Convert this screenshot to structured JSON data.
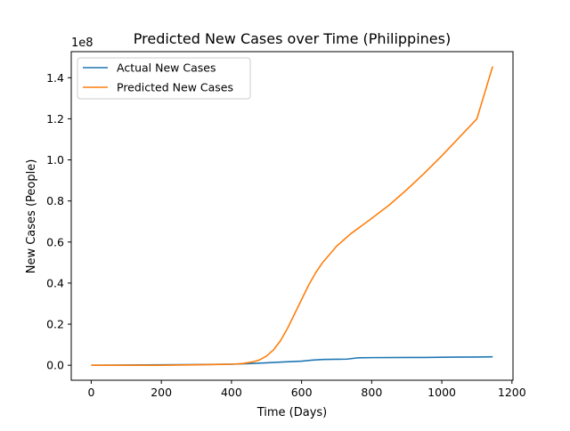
{
  "chart_data": {
    "type": "line",
    "title": "Predicted New Cases over Time (Philippines)",
    "xlabel": "Time (Days)",
    "ylabel": "New Cases (People)",
    "y_offset_label": "1e8",
    "xlim": [
      -57,
      1203
    ],
    "ylim": [
      -0.073,
      1.527
    ],
    "xticks": [
      0,
      200,
      400,
      600,
      800,
      1000,
      1200
    ],
    "xtick_labels": [
      "0",
      "200",
      "400",
      "600",
      "800",
      "1000",
      "1200"
    ],
    "yticks": [
      0.0,
      0.2,
      0.4,
      0.6,
      0.8,
      1.0,
      1.2,
      1.4
    ],
    "ytick_labels": [
      "0.0",
      "0.2",
      "0.4",
      "0.6",
      "0.8",
      "1.0",
      "1.2",
      "1.4"
    ],
    "grid": false,
    "legend_position": "top-left",
    "series": [
      {
        "name": "Actual New Cases",
        "color": "#1f77b4",
        "x": [
          0,
          100,
          200,
          300,
          400,
          450,
          500,
          550,
          600,
          630,
          660,
          700,
          730,
          760,
          800,
          900,
          950,
          1000,
          1100,
          1145
        ],
        "y": [
          0.0,
          0.001,
          0.002,
          0.003,
          0.005,
          0.008,
          0.012,
          0.016,
          0.02,
          0.025,
          0.028,
          0.029,
          0.03,
          0.036,
          0.037,
          0.038,
          0.038,
          0.039,
          0.04,
          0.041
        ]
      },
      {
        "name": "Predicted New Cases",
        "color": "#ff7f0e",
        "x": [
          0,
          100,
          200,
          300,
          400,
          430,
          460,
          480,
          500,
          520,
          540,
          560,
          580,
          600,
          620,
          640,
          660,
          680,
          700,
          720,
          740,
          760,
          780,
          800,
          850,
          900,
          950,
          1000,
          1050,
          1100,
          1145
        ],
        "y": [
          0.0,
          0.0,
          0.0,
          0.002,
          0.005,
          0.008,
          0.016,
          0.026,
          0.045,
          0.075,
          0.12,
          0.18,
          0.25,
          0.32,
          0.39,
          0.45,
          0.5,
          0.54,
          0.58,
          0.61,
          0.64,
          0.665,
          0.69,
          0.715,
          0.78,
          0.855,
          0.935,
          1.02,
          1.11,
          1.2,
          1.455
        ]
      }
    ]
  }
}
